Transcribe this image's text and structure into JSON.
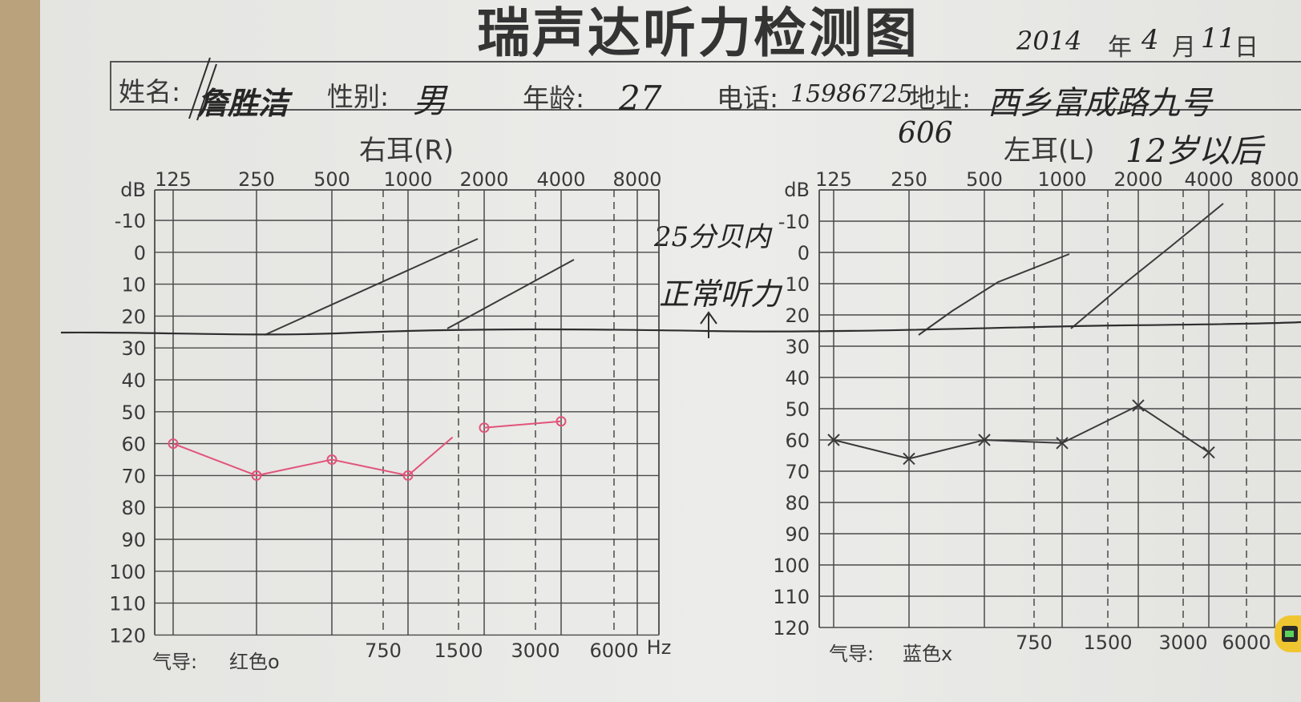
{
  "header": {
    "title": "瑞声达听力检测图",
    "date_year": "2014",
    "date_year_unit": "年",
    "date_month": "4",
    "date_month_unit": "月",
    "date_day": "11",
    "date_day_unit": "日"
  },
  "patient": {
    "name_label": "姓名:",
    "name_value": "詹胜洁",
    "gender_label": "性别:",
    "gender_value": "男",
    "age_label": "年龄:",
    "age_value": "27",
    "phone_label": "电话:",
    "phone_value": "15986725",
    "address_label": "地址:",
    "address_value": "西乡富成路九号",
    "address_extra": "606"
  },
  "annotation": {
    "line1": "25分贝内",
    "line2": "正常听力",
    "arrow": "↑"
  },
  "legend": {
    "right_label": "气导:",
    "right_value": "红色o",
    "left_label": "气导:",
    "left_value": "蓝色x"
  },
  "left_note": "12岁以后",
  "colors": {
    "grid": "#4a4a4a",
    "red_curve": "#e2547a",
    "dark_curve": "#3a3a3a",
    "paper": "#e8e8e6"
  },
  "chart_data": [
    {
      "type": "line",
      "title": "右耳(R)",
      "ylabel": "dB",
      "xlabel": "Hz",
      "x_ticks_top": [
        "125",
        "250",
        "500",
        "1000",
        "2000",
        "4000",
        "8000"
      ],
      "x_ticks_bottom": [
        "750",
        "1500",
        "3000",
        "6000"
      ],
      "y_ticks": [
        "dB",
        "-10",
        "0",
        "10",
        "20",
        "30",
        "40",
        "50",
        "60",
        "70",
        "80",
        "90",
        "100",
        "110",
        "120"
      ],
      "ylim": [
        -10,
        120
      ],
      "y_inverted": true,
      "x_scale": "log",
      "series": [
        {
          "name": "气导: 红色o",
          "marker": "o",
          "color": "#e2547a",
          "x": [
            125,
            250,
            500,
            1000,
            1500
          ],
          "y": [
            60,
            70,
            65,
            70,
            58
          ]
        },
        {
          "name": "气导: 红色o",
          "marker": "o",
          "color": "#e2547a",
          "x": [
            2000,
            4000
          ],
          "y": [
            55,
            53
          ]
        }
      ],
      "reference_line_db": 25
    },
    {
      "type": "line",
      "title": "左耳(L)",
      "ylabel": "dB",
      "x_ticks_top": [
        "125",
        "250",
        "500",
        "1000",
        "2000",
        "4000",
        "8000"
      ],
      "x_ticks_bottom": [
        "750",
        "1500",
        "3000",
        "6000"
      ],
      "y_ticks": [
        "dB",
        "-10",
        "0",
        "10",
        "20",
        "30",
        "40",
        "50",
        "60",
        "70",
        "80",
        "90",
        "100",
        "110",
        "120"
      ],
      "ylim": [
        -10,
        120
      ],
      "y_inverted": true,
      "x_scale": "log",
      "series": [
        {
          "name": "气导: 蓝色x",
          "marker": "x",
          "color": "#3a3a3a",
          "x": [
            125,
            250,
            500,
            1000,
            2000,
            4000
          ],
          "y": [
            60,
            66,
            60,
            61,
            49,
            64
          ]
        }
      ],
      "reference_line_db": 25
    }
  ]
}
